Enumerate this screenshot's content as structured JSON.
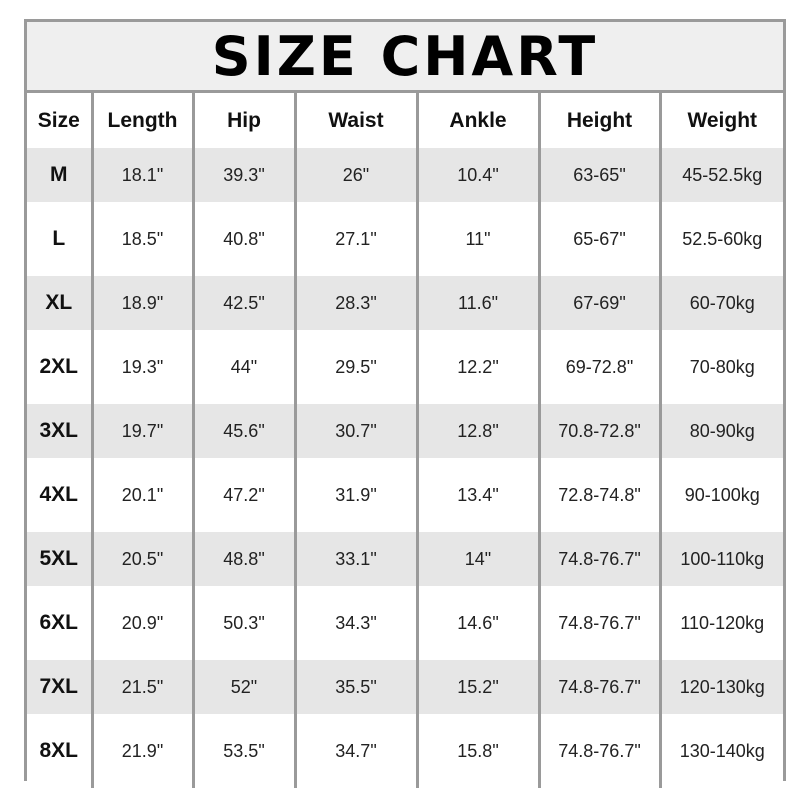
{
  "title": "SIZE CHART",
  "colors": {
    "border": "#9a9a9a",
    "shade_row": "#e6e6e6",
    "title_band": "#efefef"
  },
  "headers": [
    "Size",
    "Length",
    "Hip",
    "Waist",
    "Ankle",
    "Height",
    "Weight"
  ],
  "rows": [
    [
      "M",
      "18.1\"",
      "39.3\"",
      "26\"",
      "10.4\"",
      "63-65\"",
      "45-52.5kg"
    ],
    [
      "L",
      "18.5\"",
      "40.8\"",
      "27.1\"",
      "11\"",
      "65-67\"",
      "52.5-60kg"
    ],
    [
      "XL",
      "18.9\"",
      "42.5\"",
      "28.3\"",
      "11.6\"",
      "67-69\"",
      "60-70kg"
    ],
    [
      "2XL",
      "19.3\"",
      "44\"",
      "29.5\"",
      "12.2\"",
      "69-72.8\"",
      "70-80kg"
    ],
    [
      "3XL",
      "19.7\"",
      "45.6\"",
      "30.7\"",
      "12.8\"",
      "70.8-72.8\"",
      "80-90kg"
    ],
    [
      "4XL",
      "20.1\"",
      "47.2\"",
      "31.9\"",
      "13.4\"",
      "72.8-74.8\"",
      "90-100kg"
    ],
    [
      "5XL",
      "20.5\"",
      "48.8\"",
      "33.1\"",
      "14\"",
      "74.8-76.7\"",
      "100-110kg"
    ],
    [
      "6XL",
      "20.9\"",
      "50.3\"",
      "34.3\"",
      "14.6\"",
      "74.8-76.7\"",
      "110-120kg"
    ],
    [
      "7XL",
      "21.5\"",
      "52\"",
      "35.5\"",
      "15.2\"",
      "74.8-76.7\"",
      "120-130kg"
    ],
    [
      "8XL",
      "21.9\"",
      "53.5\"",
      "34.7\"",
      "15.8\"",
      "74.8-76.7\"",
      "130-140kg"
    ]
  ]
}
